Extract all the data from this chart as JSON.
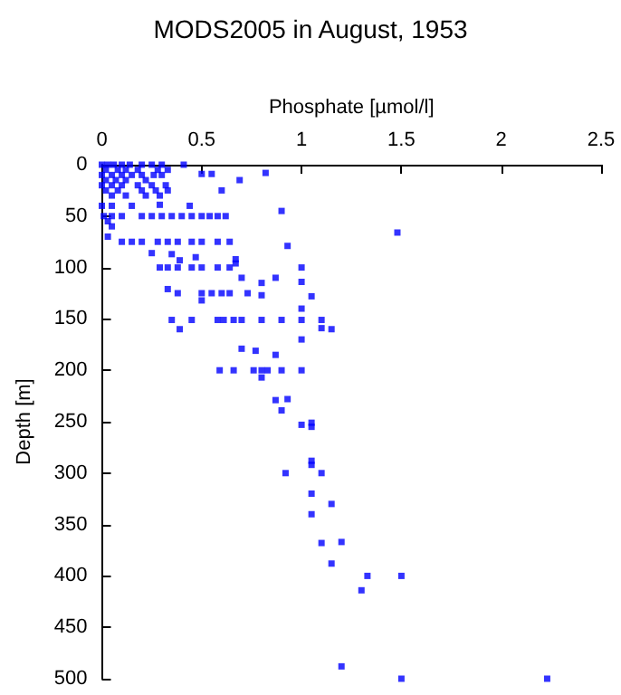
{
  "chart_data": {
    "type": "scatter",
    "title": "MODS2005 in August, 1953",
    "xlabel": "Phosphate [µmol/l]",
    "ylabel": "Depth [m]",
    "xlim": [
      0,
      2.5
    ],
    "xticks": [
      0,
      0.5,
      1,
      1.5,
      2,
      2.5
    ],
    "ylim": [
      500,
      0
    ],
    "yticks": [
      0,
      50,
      100,
      150,
      200,
      250,
      300,
      350,
      400,
      450,
      500
    ],
    "grid": false,
    "marker": "square",
    "series": [
      {
        "color": "#0000ff",
        "x": [
          0,
          0.03,
          0.06,
          0.1,
          0.14,
          0.2,
          0.25,
          0.3,
          0.41,
          0.02,
          0.08,
          0.12,
          0.18,
          0.28,
          0.33,
          0,
          0.05,
          0.1,
          0.15,
          0.2,
          0.26,
          0.3,
          0.5,
          0.55,
          0.82,
          0.02,
          0.07,
          0.12,
          0.22,
          0.69,
          0,
          0.05,
          0.1,
          0.18,
          0.25,
          0.32,
          0.02,
          0.08,
          0.2,
          0.27,
          0.33,
          0.6,
          0.05,
          0.12,
          0.22,
          0.29,
          0,
          0.05,
          0.15,
          0.29,
          0.44,
          0.9,
          0.01,
          0.05,
          0.1,
          0.2,
          0.25,
          0.3,
          0.35,
          0.4,
          0.45,
          0.5,
          0.54,
          0.58,
          0.62,
          0.03,
          0.05,
          0.03,
          0.1,
          0.15,
          0.2,
          0.28,
          0.33,
          0.38,
          0.45,
          0.5,
          0.58,
          0.64,
          0.93,
          1.48,
          0.25,
          0.35,
          0.39,
          0.47,
          0.67,
          0.67,
          0.29,
          0.33,
          0.38,
          0.45,
          0.5,
          0.58,
          0.64,
          1.0,
          0.7,
          0.87,
          0.8,
          1.0,
          0.33,
          0.38,
          0.5,
          0.55,
          0.6,
          0.64,
          0.73,
          0.8,
          1.05,
          0.5,
          1.0,
          0.35,
          0.45,
          0.58,
          0.61,
          0.66,
          0.7,
          0.8,
          0.9,
          1.0,
          1.1,
          0.39,
          1.1,
          1.15,
          1.0,
          0.7,
          0.77,
          0.87,
          0.59,
          0.66,
          0.76,
          0.8,
          0.83,
          0.9,
          1.0,
          0.8,
          0.87,
          0.93,
          0.9,
          1.0,
          1.05,
          1.05,
          1.05,
          1.05,
          0.92,
          1.1,
          1.05,
          1.15,
          1.05,
          1.1,
          1.2,
          1.15,
          1.33,
          1.5,
          1.3,
          1.2,
          1.5,
          2.23
        ],
        "values": [
          0,
          0,
          0,
          0,
          0,
          0,
          0,
          0,
          0,
          5,
          5,
          5,
          5,
          5,
          5,
          10,
          10,
          10,
          10,
          10,
          10,
          10,
          9,
          9,
          8,
          15,
          15,
          15,
          15,
          15,
          20,
          20,
          20,
          20,
          20,
          20,
          25,
          25,
          25,
          25,
          25,
          25,
          30,
          30,
          30,
          30,
          40,
          40,
          40,
          39,
          40,
          45,
          50,
          50,
          50,
          50,
          50,
          50,
          50,
          50,
          50,
          50,
          50,
          50,
          50,
          55,
          60,
          70,
          75,
          75,
          75,
          75,
          75,
          75,
          75,
          75,
          75,
          75,
          79,
          66,
          86,
          87,
          93,
          90,
          92,
          96,
          100,
          100,
          100,
          100,
          100,
          100,
          100,
          100,
          110,
          110,
          115,
          114,
          121,
          125,
          125,
          125,
          125,
          125,
          125,
          127,
          128,
          132,
          140,
          151,
          151,
          151,
          151,
          151,
          151,
          151,
          151,
          151,
          151,
          160,
          159,
          160,
          170,
          179,
          181,
          185,
          200,
          200,
          200,
          200,
          200,
          200,
          200,
          207,
          229,
          228,
          239,
          253,
          251,
          255,
          288,
          292,
          300,
          300,
          320,
          330,
          340,
          368,
          367,
          388,
          400,
          400,
          414,
          488,
          500,
          500
        ]
      }
    ]
  }
}
